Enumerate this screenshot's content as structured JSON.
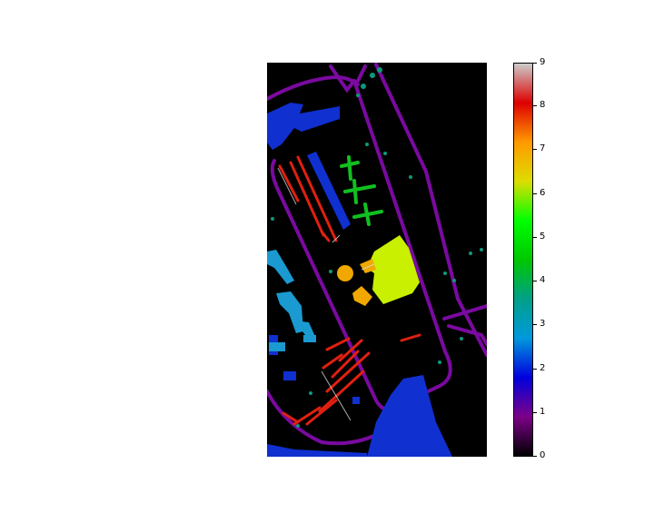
{
  "chart_data": {
    "type": "heatmap",
    "title": "",
    "xlabel": "",
    "ylabel": "",
    "colormap": "nipy_spectral",
    "colorbar": {
      "vmin": 0,
      "vmax": 9,
      "ticks": [
        "0",
        "1",
        "2",
        "3",
        "4",
        "5",
        "6",
        "7",
        "8",
        "9"
      ],
      "stops": [
        "#000000",
        "#7d0089",
        "#0000dd",
        "#0099dd",
        "#00a088",
        "#00c700",
        "#00ff00",
        "#dddd00",
        "#ff9900",
        "#dd0000",
        "#cccccc"
      ]
    },
    "class_colors": {
      "0": "#000000",
      "1": "#7a0aa0",
      "2": "#1030d0",
      "3": "#1a9ad0",
      "4": "#0a9a7a",
      "5": "#10c020",
      "6": "#c8f000",
      "7": "#f0a800",
      "8": "#e02010",
      "9": "#d8d8d8"
    },
    "map_rows": 610,
    "map_cols": 340,
    "regions_note_absent": true
  }
}
